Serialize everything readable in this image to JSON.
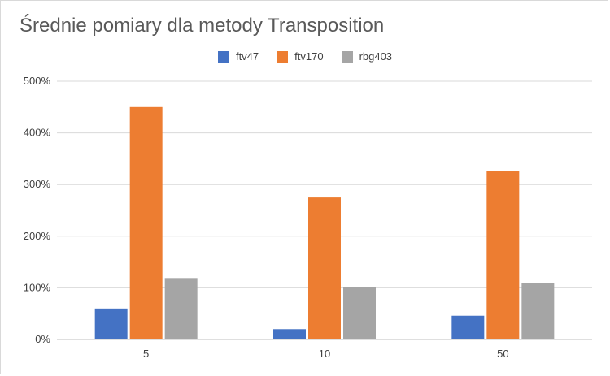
{
  "chart_data": {
    "type": "bar",
    "title": "Średnie pomiary dla metody Transposition",
    "xlabel": "",
    "ylabel": "",
    "categories": [
      "5",
      "10",
      "50"
    ],
    "series": [
      {
        "name": "ftv47",
        "values": [
          60,
          20,
          46
        ],
        "color": "#4472c4"
      },
      {
        "name": "ftv170",
        "values": [
          450,
          275,
          326
        ],
        "color": "#ed7d31"
      },
      {
        "name": "rbg403",
        "values": [
          119,
          101,
          109
        ],
        "color": "#a5a5a5"
      }
    ],
    "ylim": [
      0,
      500
    ],
    "yticks": [
      "0%",
      "100%",
      "200%",
      "300%",
      "400%",
      "500%"
    ],
    "grid": true,
    "legend_position": "top"
  }
}
